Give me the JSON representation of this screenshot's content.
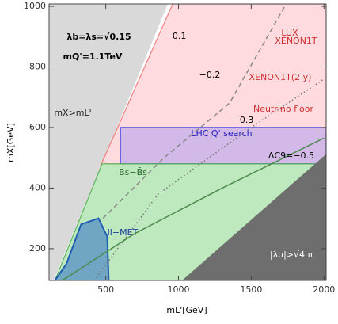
{
  "chart_data": {
    "type": "region",
    "x_label": "mL'[GeV]",
    "y_label": "mX[GeV]",
    "xlim": [
      110,
      2015
    ],
    "ylim": [
      95,
      1008
    ],
    "xticks": [
      500,
      1000,
      1500,
      2000
    ],
    "yticks": [
      200,
      400,
      600,
      800,
      1000
    ],
    "regions": [
      {
        "label": "mX>mL'",
        "color": "#d9d9d9",
        "edge": "#ffffff",
        "x": [
          110,
          145,
          930,
          110
        ],
        "y": [
          95,
          95,
          1008,
          1008
        ]
      },
      {
        "label": "XENON1T",
        "color": "rgba(255,150,160,0.35)",
        "edge": "#f08080",
        "x": [
          470,
          2015,
          2015,
          960
        ],
        "y": [
          480,
          480,
          1008,
          1008
        ]
      },
      {
        "label": "LHC Q' search",
        "color": "rgba(110,110,255,0.3)",
        "edge": "#2a2ae8",
        "x": [
          600,
          2015,
          2015,
          600
        ],
        "y": [
          480,
          480,
          600,
          600
        ]
      },
      {
        "label": "Bs−B̄s",
        "color": "rgba(110,205,110,0.45)",
        "edge": "#5ab45a",
        "x": [
          150,
          475,
          2015,
          2015,
          1030
        ],
        "y": [
          95,
          480,
          480,
          510,
          95
        ]
      },
      {
        "label": "|λμ|>√4 π",
        "color": "#6e6e6e",
        "edge": "#6e6e6e",
        "x": [
          1030,
          2015,
          2015
        ],
        "y": [
          95,
          510,
          95
        ]
      },
      {
        "label": "ll+MET",
        "color": "rgba(60,120,200,0.6)",
        "edge": "#1f5fb0",
        "x": [
          150,
          230,
          330,
          450,
          510,
          520
        ],
        "y": [
          95,
          150,
          280,
          300,
          240,
          95
        ]
      }
    ],
    "contours": [
      {
        "label": "−0.1",
        "style": "dashed",
        "color": "#888888",
        "x": [
          480,
          900,
          1350,
          1730
        ],
        "y": [
          300,
          500,
          680,
          1000
        ]
      },
      {
        "label": "−0.2",
        "style": "dotted",
        "color": "#777777",
        "x": [
          420,
          860,
          1500,
          2000
        ],
        "y": [
          95,
          380,
          600,
          760
        ]
      },
      {
        "label": "ΔC9=−0.5",
        "style": "solid",
        "color": "#4d8a4d",
        "x": [
          200,
          700,
          1300,
          2000
        ],
        "y": [
          95,
          250,
          400,
          565
        ]
      }
    ],
    "annotations": [
      "λb=λs=√0.15",
      "mQ'=1.1TeV",
      "LUX",
      "XENON1T(2 y)",
      "Neutrino floor",
      "−0.3"
    ]
  }
}
